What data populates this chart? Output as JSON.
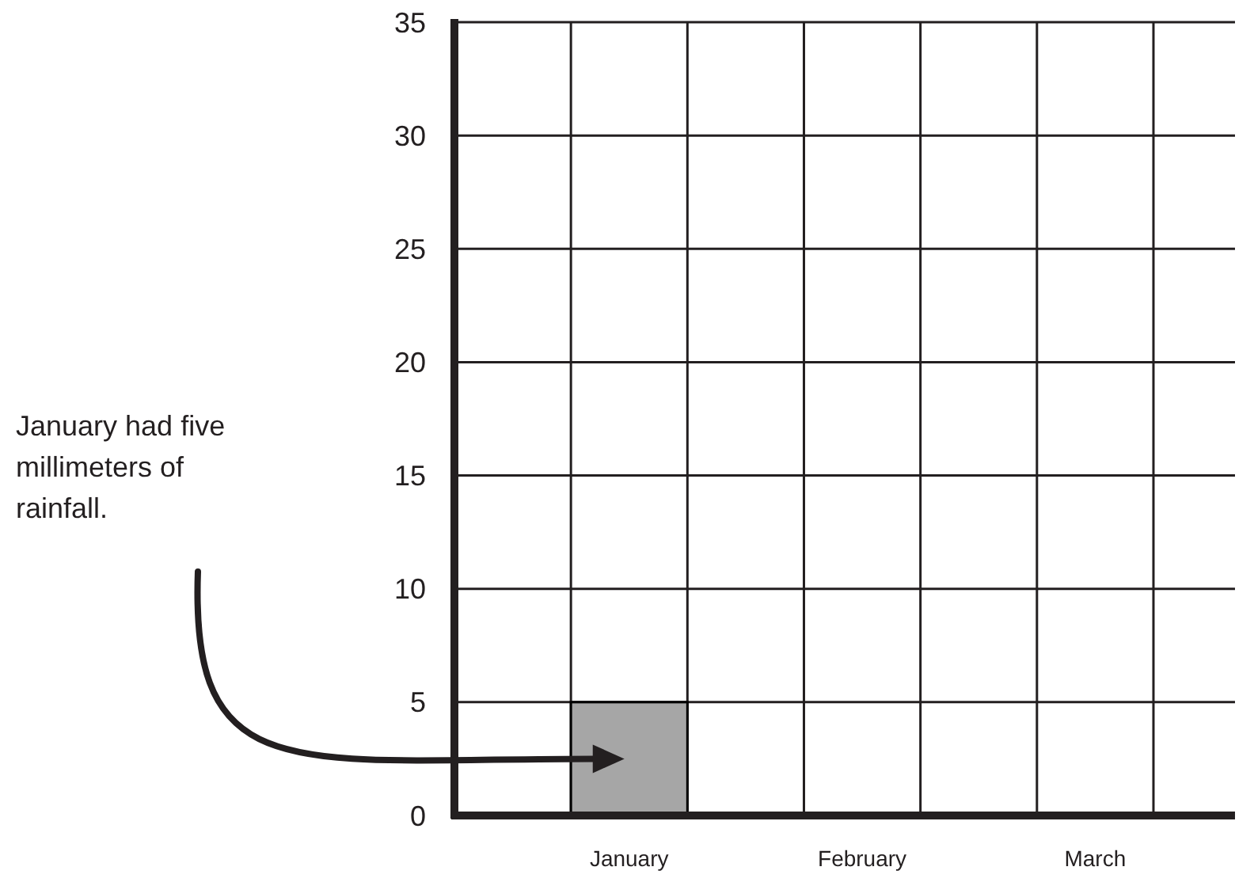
{
  "chart_data": {
    "type": "bar",
    "categories": [
      "January",
      "February",
      "March"
    ],
    "values": [
      5,
      null,
      null
    ],
    "color": "#a6a6a6",
    "ylim": [
      0,
      35
    ],
    "yticks": [
      0,
      5,
      10,
      15,
      20,
      25,
      30,
      35
    ],
    "grid": true,
    "annotations": [
      "January had five millimeters of rainfall."
    ]
  }
}
